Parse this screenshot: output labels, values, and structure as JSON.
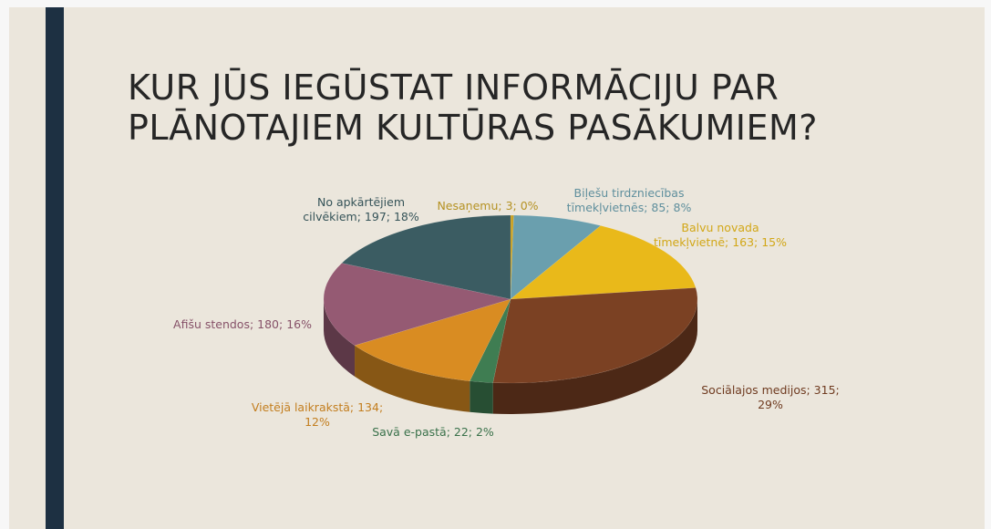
{
  "chart_data": {
    "type": "pie3d",
    "title": "KUR JŪS IEGŪSTAT INFORMĀCIJU PAR\nPLĀNOTAJIEM KULTŪRAS PASĀKUMIEM?",
    "values": [
      3,
      85,
      163,
      315,
      22,
      134,
      180,
      197
    ],
    "value_labels": [
      "Nesaņemu; 3; 0%",
      "Biļešu tirdzniecības\ntīmekļvietnēs; 85; 8%",
      "Balvu novada\ntīmekļvietnē; 163; 15%",
      "Sociālajos medijos; 315;\n29%",
      "Savā e-pastā; 22; 2%",
      "Vietējā laikrakstā; 134;\n12%",
      "Afišu stendos; 180; 16%",
      "No apkārtējiem\ncilvēkiem; 197; 18%"
    ],
    "colors": [
      "#c9a227",
      "#6a9fae",
      "#e9b91a",
      "#7b4123",
      "#3f7d52",
      "#d98c22",
      "#955a73",
      "#3b5c62"
    ]
  }
}
